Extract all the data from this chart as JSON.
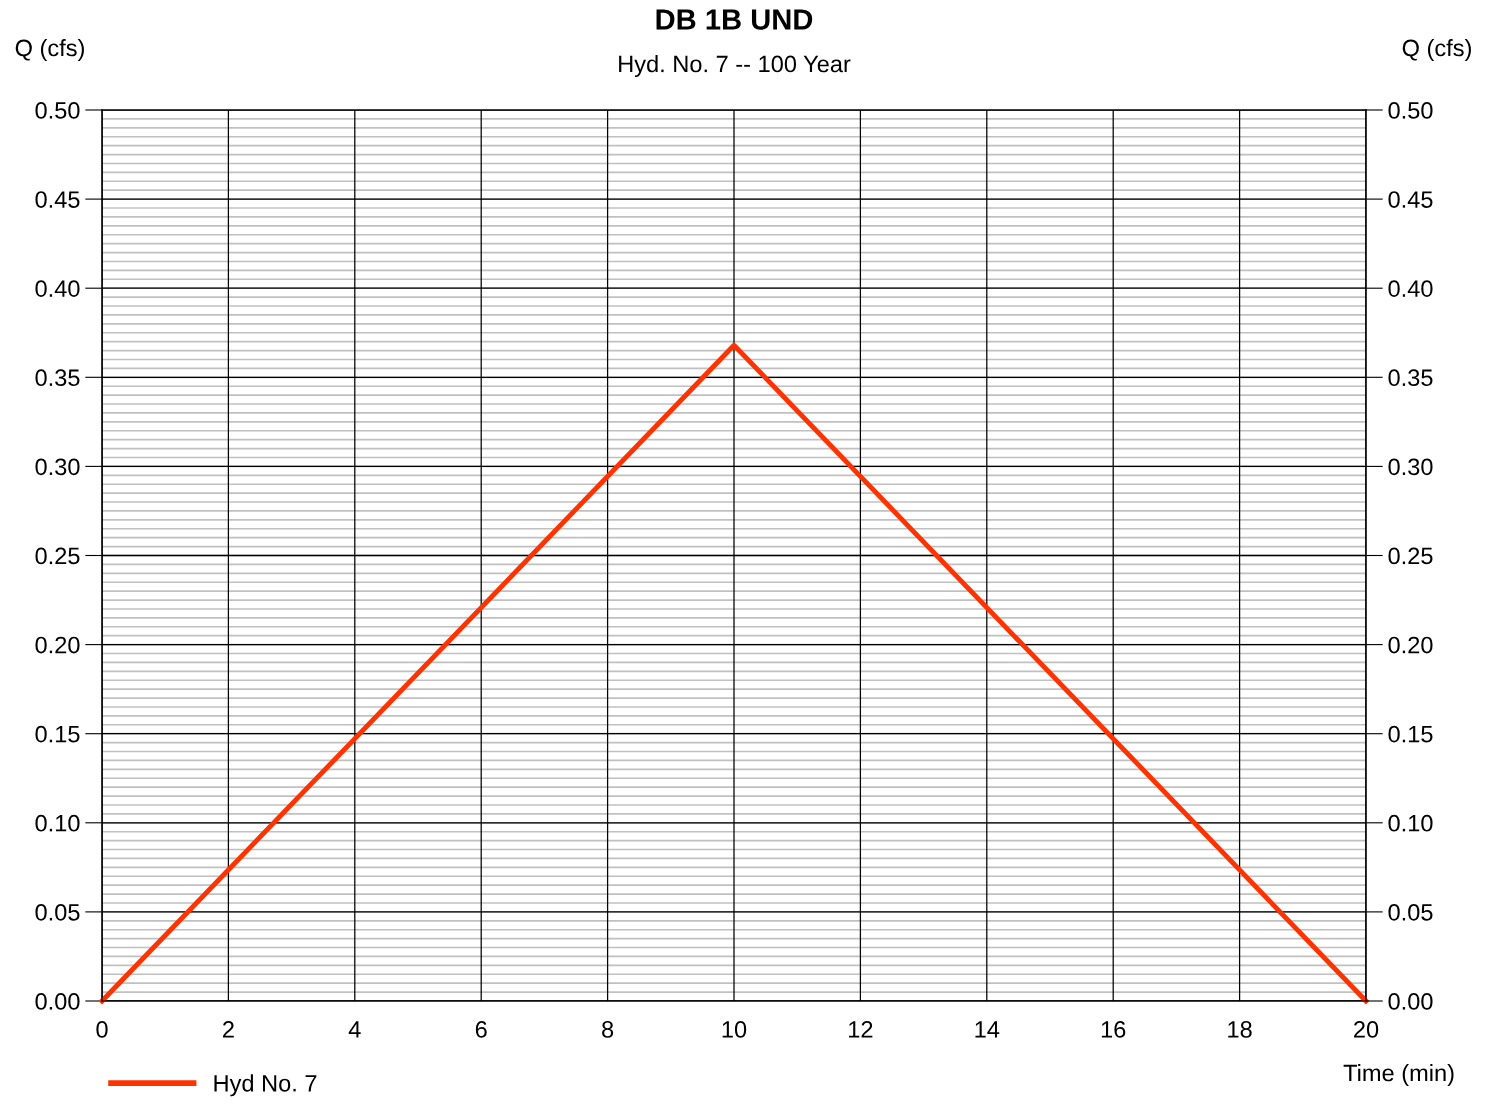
{
  "chart_data": {
    "type": "line",
    "title": "DB 1B UND",
    "subtitle": "Hyd. No. 7 -- 100 Year",
    "xlabel": "Time (min)",
    "ylabel": "Q (cfs)",
    "y2label": "Q (cfs)",
    "x": [
      0,
      10,
      20
    ],
    "series": [
      {
        "name": "Hyd No. 7",
        "color": "#ff3300",
        "values": [
          0,
          0.368,
          0
        ]
      }
    ],
    "xlim": [
      0,
      20
    ],
    "xticks": [
      0,
      2,
      4,
      6,
      8,
      10,
      12,
      14,
      16,
      18,
      20
    ],
    "ylim": [
      0,
      0.5
    ],
    "yticks": [
      {
        "value": 0,
        "label": "0.00"
      },
      {
        "value": 0.05,
        "label": "0.05"
      },
      {
        "value": 0.1,
        "label": "0.10"
      },
      {
        "value": 0.15,
        "label": "0.15"
      },
      {
        "value": 0.2,
        "label": "0.20"
      },
      {
        "value": 0.25,
        "label": "0.25"
      },
      {
        "value": 0.3,
        "label": "0.30"
      },
      {
        "value": 0.35,
        "label": "0.35"
      },
      {
        "value": 0.4,
        "label": "0.40"
      },
      {
        "value": 0.45,
        "label": "0.45"
      },
      {
        "value": 0.5,
        "label": "0.50"
      }
    ],
    "y2lim": [
      0,
      0.5
    ],
    "y2ticks": [
      {
        "value": 0,
        "label": "0.00"
      },
      {
        "value": 0.05,
        "label": "0.05"
      },
      {
        "value": 0.1,
        "label": "0.10"
      },
      {
        "value": 0.15,
        "label": "0.15"
      },
      {
        "value": 0.2,
        "label": "0.20"
      },
      {
        "value": 0.25,
        "label": "0.25"
      },
      {
        "value": 0.3,
        "label": "0.30"
      },
      {
        "value": 0.35,
        "label": "0.35"
      },
      {
        "value": 0.4,
        "label": "0.40"
      },
      {
        "value": 0.45,
        "label": "0.45"
      },
      {
        "value": 0.5,
        "label": "0.50"
      }
    ],
    "grid": true,
    "legend": "bottom left",
    "marker": "none",
    "line_style": "solid"
  }
}
